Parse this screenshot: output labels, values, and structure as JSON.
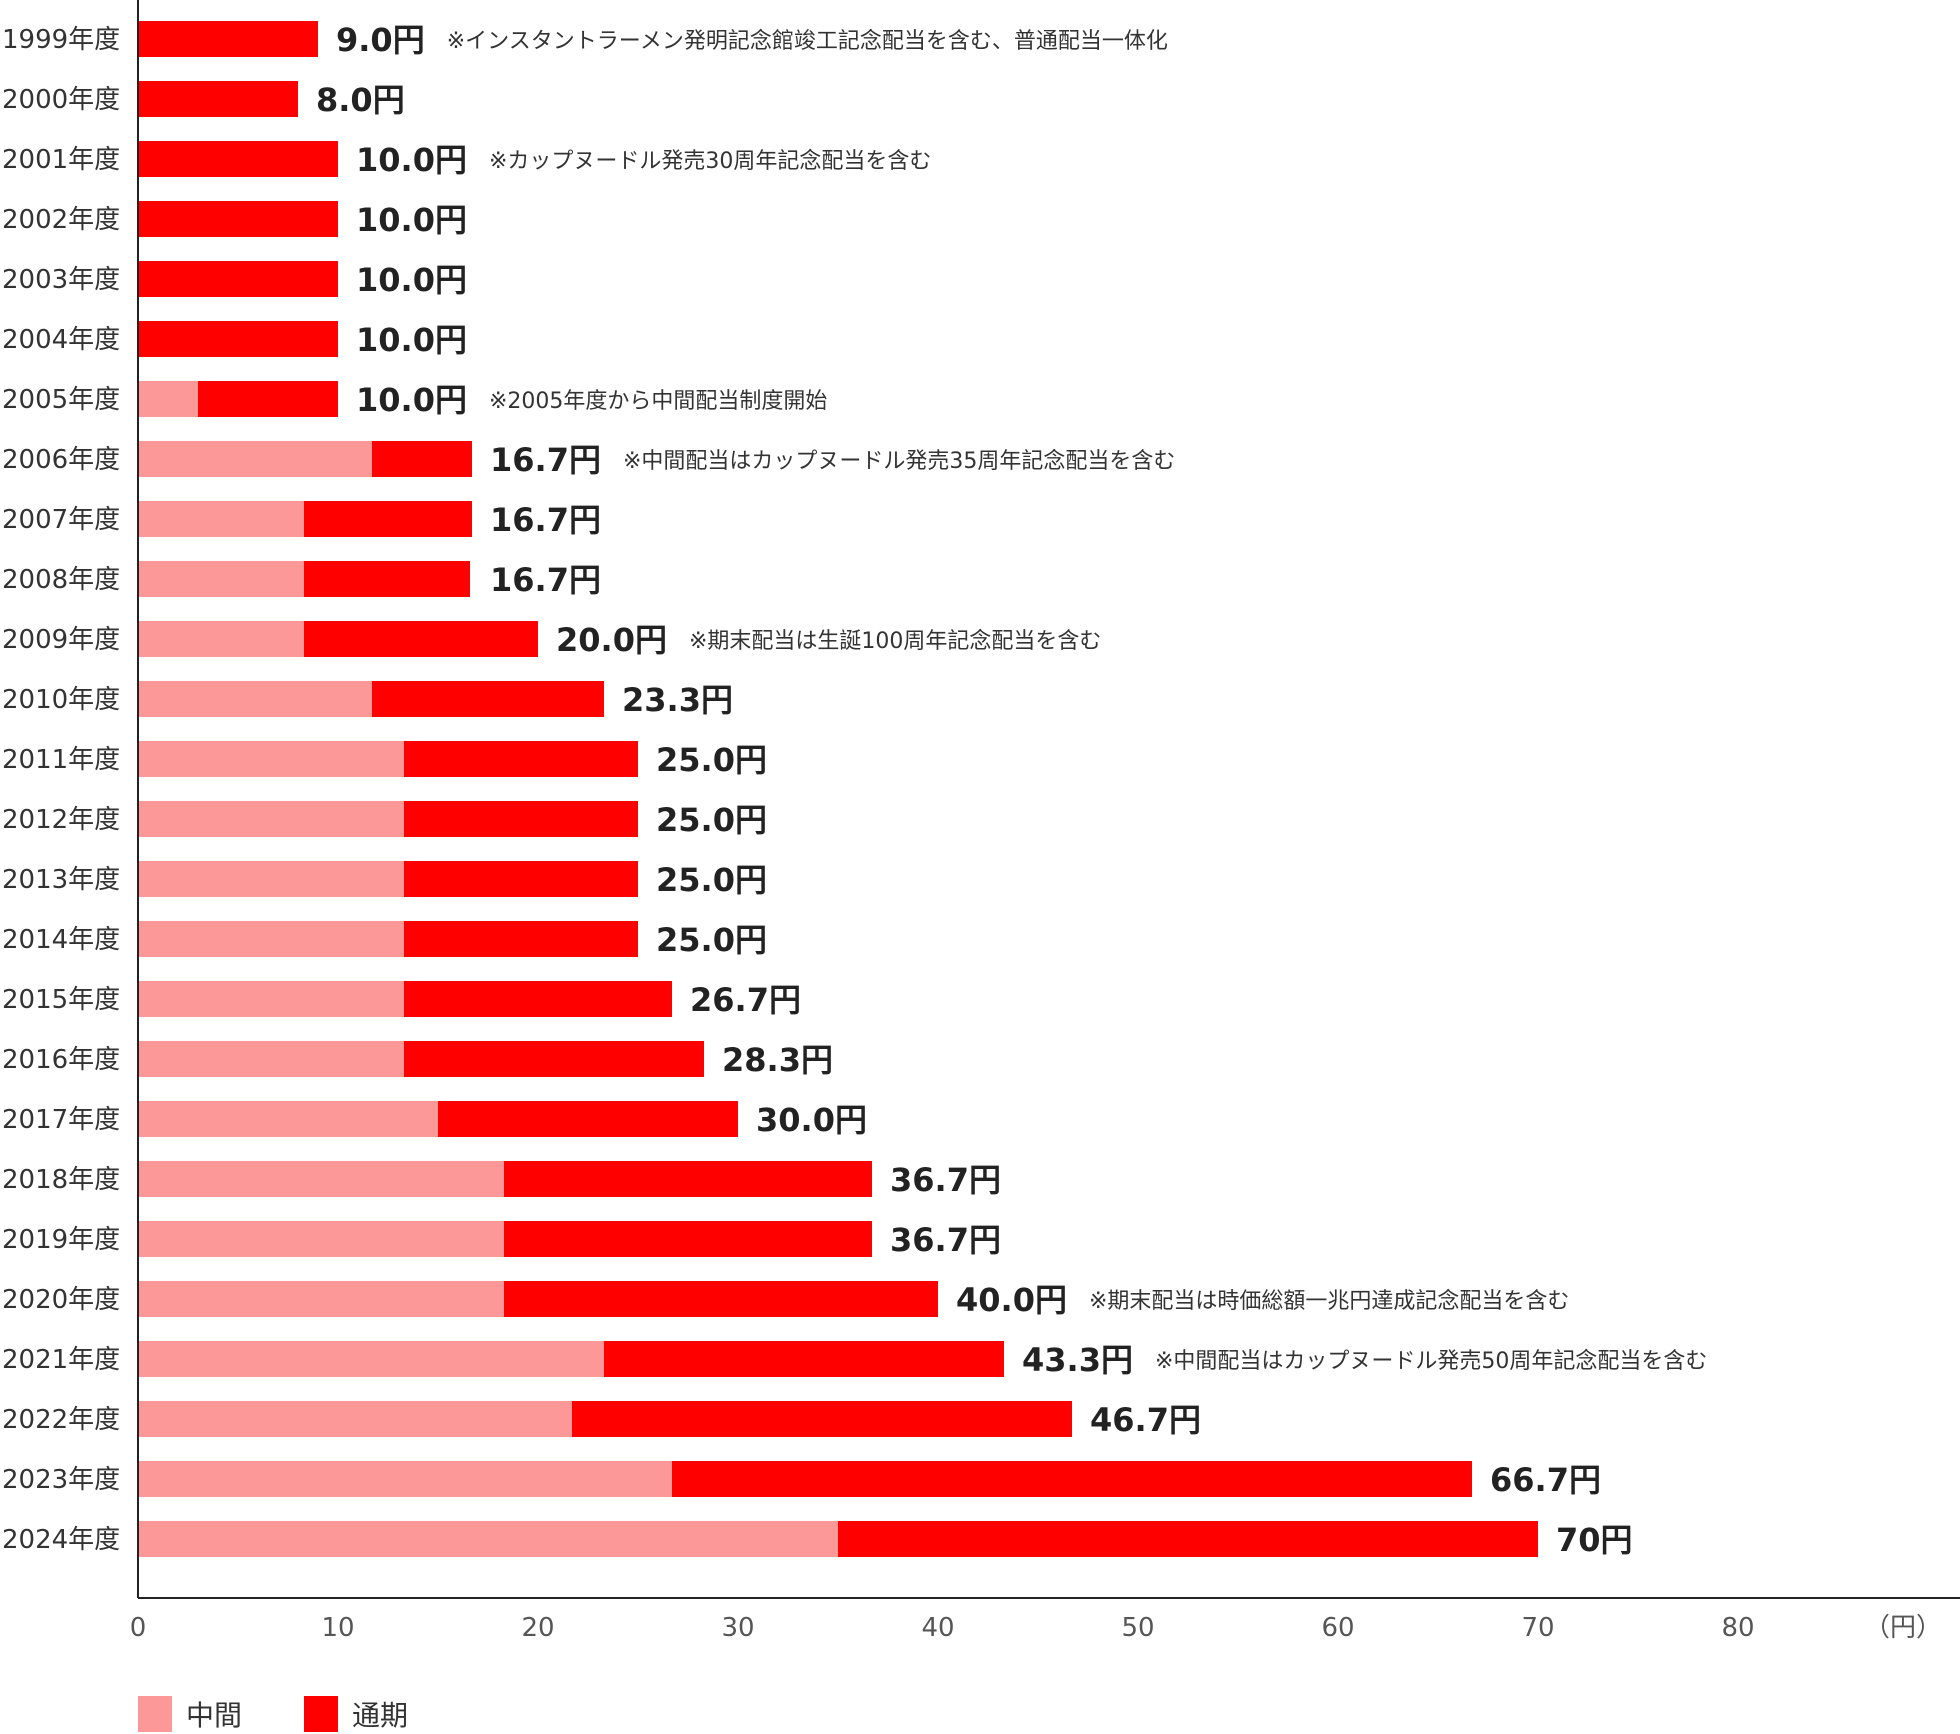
{
  "chart_data": {
    "type": "bar",
    "orientation": "horizontal",
    "stacked": true,
    "unit_label": "（円）",
    "xlim": [
      0,
      80
    ],
    "x_ticks": [
      "0",
      "10",
      "20",
      "30",
      "40",
      "50",
      "60",
      "70",
      "80"
    ],
    "categories": [
      "1999年度",
      "2000年度",
      "2001年度",
      "2002年度",
      "2003年度",
      "2004年度",
      "2005年度",
      "2006年度",
      "2007年度",
      "2008年度",
      "2009年度",
      "2010年度",
      "2011年度",
      "2012年度",
      "2013年度",
      "2014年度",
      "2015年度",
      "2016年度",
      "2017年度",
      "2018年度",
      "2019年度",
      "2020年度",
      "2021年度",
      "2022年度",
      "2023年度",
      "2024年度"
    ],
    "series": [
      {
        "name": "中間",
        "color": "#FC9898",
        "values": [
          0,
          0,
          0,
          0,
          0,
          0,
          3.0,
          11.7,
          8.3,
          8.3,
          8.3,
          11.7,
          13.3,
          13.3,
          13.3,
          13.3,
          13.3,
          13.3,
          15.0,
          18.3,
          18.3,
          18.3,
          23.3,
          21.7,
          26.7,
          35.0
        ]
      },
      {
        "name": "通期",
        "color": "#FF0000",
        "values": [
          9.0,
          8.0,
          10.0,
          10.0,
          10.0,
          10.0,
          7.0,
          5.0,
          8.4,
          8.3,
          11.7,
          11.6,
          11.7,
          11.7,
          11.7,
          11.7,
          13.4,
          15.0,
          15.0,
          18.4,
          18.4,
          21.7,
          20.0,
          25.0,
          40.0,
          35.0
        ]
      }
    ],
    "totals": [
      9.0,
      8.0,
      10.0,
      10.0,
      10.0,
      10.0,
      10.0,
      16.7,
      16.7,
      16.7,
      20.0,
      23.3,
      25.0,
      25.0,
      25.0,
      25.0,
      26.7,
      28.3,
      30.0,
      36.7,
      36.7,
      40.0,
      43.3,
      46.7,
      66.7,
      70
    ],
    "value_labels": [
      "9.0円",
      "8.0円",
      "10.0円",
      "10.0円",
      "10.0円",
      "10.0円",
      "10.0円",
      "16.7円",
      "16.7円",
      "16.7円",
      "20.0円",
      "23.3円",
      "25.0円",
      "25.0円",
      "25.0円",
      "25.0円",
      "26.7円",
      "28.3円",
      "30.0円",
      "36.7円",
      "36.7円",
      "40.0円",
      "43.3円",
      "46.7円",
      "66.7円",
      "70円"
    ],
    "notes": [
      "※インスタントラーメン発明記念館竣工記念配当を含む、普通配当一体化",
      "",
      "※カップヌードル発売30周年記念配当を含む",
      "",
      "",
      "",
      "※2005年度から中間配当制度開始",
      "※中間配当はカップヌードル発売35周年記念配当を含む",
      "",
      "",
      "※期末配当は生誕100周年記念配当を含む",
      "",
      "",
      "",
      "",
      "",
      "",
      "",
      "",
      "",
      "",
      "※期末配当は時価総額一兆円達成記念配当を含む",
      "※中間配当はカップヌードル発売50周年記念配当を含む",
      "",
      "",
      ""
    ],
    "legend": {
      "position": "bottom-left",
      "items": [
        "中間",
        "通期"
      ]
    }
  }
}
